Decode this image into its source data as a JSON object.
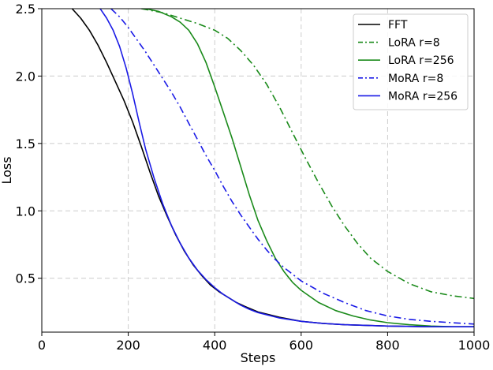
{
  "chart_data": {
    "type": "line",
    "title": "",
    "xlabel": "Steps",
    "ylabel": "Loss",
    "xlim": [
      0,
      1000
    ],
    "ylim": [
      0.1,
      2.5
    ],
    "xticks": [
      0,
      200,
      400,
      600,
      800,
      1000
    ],
    "xtick_labels": [
      "0",
      "200",
      "400",
      "600",
      "800",
      "1000"
    ],
    "yticks": [
      0.5,
      1.0,
      1.5,
      2.0,
      2.5
    ],
    "ytick_labels": [
      "0.5",
      "1.0",
      "1.5",
      "2.0",
      "2.5"
    ],
    "grid": true,
    "legend_position": "top-right",
    "series": [
      {
        "name": "FFT",
        "color": "#000000",
        "dash": "solid",
        "x": [
          70,
          90,
          110,
          130,
          150,
          170,
          190,
          210,
          230,
          250,
          270,
          290,
          310,
          330,
          350,
          370,
          390,
          410,
          430,
          450,
          470,
          500,
          550,
          600,
          650,
          700,
          800,
          900,
          1000
        ],
        "y": [
          2.5,
          2.43,
          2.34,
          2.23,
          2.1,
          1.96,
          1.82,
          1.66,
          1.48,
          1.29,
          1.11,
          0.96,
          0.82,
          0.7,
          0.6,
          0.52,
          0.45,
          0.4,
          0.36,
          0.32,
          0.29,
          0.25,
          0.21,
          0.18,
          0.165,
          0.155,
          0.145,
          0.14,
          0.14
        ]
      },
      {
        "name": "LoRA r=8",
        "color": "#1a8a1a",
        "dash": "dashdot",
        "x": [
          230,
          280,
          320,
          360,
          400,
          430,
          460,
          490,
          520,
          550,
          580,
          610,
          640,
          670,
          700,
          730,
          760,
          800,
          850,
          900,
          950,
          1000
        ],
        "y": [
          2.5,
          2.47,
          2.43,
          2.39,
          2.34,
          2.28,
          2.19,
          2.08,
          1.94,
          1.77,
          1.58,
          1.39,
          1.21,
          1.04,
          0.89,
          0.76,
          0.65,
          0.55,
          0.46,
          0.4,
          0.37,
          0.35
        ]
      },
      {
        "name": "LoRA r=256",
        "color": "#1a8a1a",
        "dash": "solid",
        "x": [
          240,
          270,
          300,
          320,
          340,
          360,
          380,
          400,
          420,
          440,
          460,
          480,
          500,
          520,
          540,
          560,
          580,
          600,
          640,
          680,
          720,
          760,
          800,
          850,
          900,
          950,
          1000
        ],
        "y": [
          2.5,
          2.48,
          2.44,
          2.4,
          2.34,
          2.24,
          2.1,
          1.92,
          1.73,
          1.54,
          1.33,
          1.12,
          0.93,
          0.78,
          0.65,
          0.55,
          0.47,
          0.41,
          0.32,
          0.26,
          0.22,
          0.19,
          0.17,
          0.155,
          0.145,
          0.14,
          0.14
        ]
      },
      {
        "name": "MoRA r=8",
        "color": "#1a1ae6",
        "dash": "dashdot",
        "x": [
          160,
          180,
          200,
          220,
          240,
          260,
          280,
          300,
          320,
          340,
          360,
          380,
          400,
          420,
          440,
          460,
          480,
          500,
          520,
          540,
          560,
          580,
          600,
          650,
          700,
          750,
          800,
          850,
          900,
          1000
        ],
        "y": [
          2.5,
          2.44,
          2.36,
          2.27,
          2.18,
          2.08,
          1.98,
          1.88,
          1.77,
          1.65,
          1.53,
          1.41,
          1.3,
          1.18,
          1.07,
          0.97,
          0.88,
          0.79,
          0.71,
          0.64,
          0.58,
          0.53,
          0.48,
          0.39,
          0.32,
          0.26,
          0.22,
          0.195,
          0.18,
          0.16
        ]
      },
      {
        "name": "MoRA r=256",
        "color": "#1a1ae6",
        "dash": "solid",
        "x": [
          135,
          150,
          165,
          180,
          195,
          210,
          225,
          240,
          260,
          280,
          300,
          320,
          340,
          360,
          380,
          400,
          420,
          440,
          460,
          480,
          500,
          550,
          600,
          650,
          700,
          800,
          900,
          1000
        ],
        "y": [
          2.5,
          2.43,
          2.34,
          2.22,
          2.06,
          1.87,
          1.66,
          1.46,
          1.24,
          1.05,
          0.89,
          0.76,
          0.65,
          0.56,
          0.49,
          0.43,
          0.38,
          0.34,
          0.3,
          0.27,
          0.245,
          0.205,
          0.18,
          0.165,
          0.155,
          0.145,
          0.14,
          0.14
        ]
      }
    ]
  }
}
